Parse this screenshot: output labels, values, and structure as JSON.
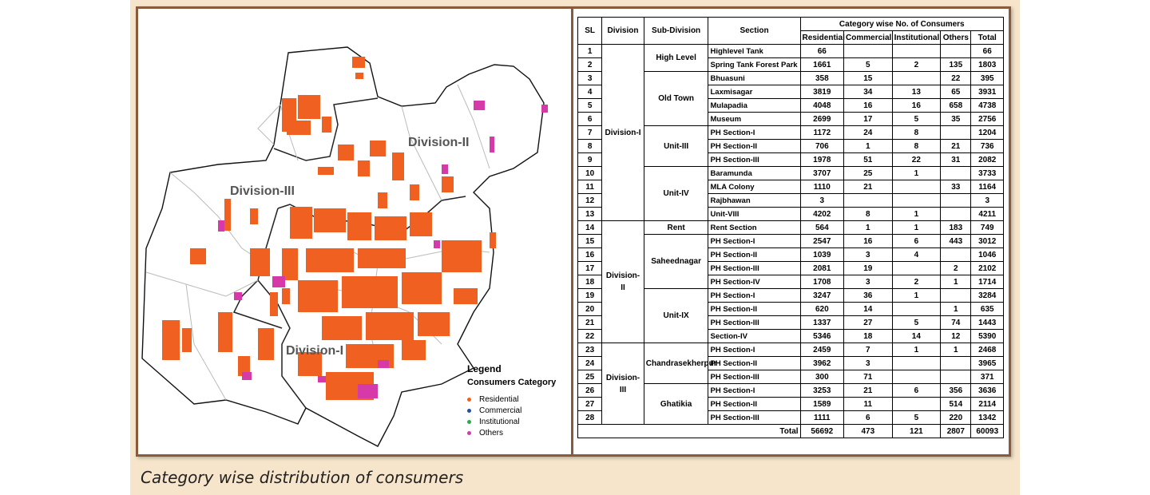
{
  "caption": "Category wise distribution of consumers",
  "map": {
    "division_labels": [
      "Division-II",
      "Division-III",
      "Division-I"
    ],
    "legend": {
      "title": "Legend",
      "subtitle": "Consumers Category",
      "items": [
        {
          "label": "Residential",
          "color": "#f06020"
        },
        {
          "label": "Commercial",
          "color": "#1f4fa8"
        },
        {
          "label": "Institutional",
          "color": "#2fa84a"
        },
        {
          "label": "Others",
          "color": "#d63aa8"
        }
      ]
    }
  },
  "table": {
    "headers": {
      "sl": "SL",
      "division": "Division",
      "sub_division": "Sub-Division",
      "section": "Section",
      "category_group": "Category wise No. of Consumers",
      "residential": "Residential",
      "commercial": "Commercial",
      "institutional": "Institutional",
      "others": "Others",
      "total": "Total"
    },
    "divisions": [
      {
        "name": "Division-I",
        "rows": 13
      },
      {
        "name": "Division-II",
        "rows": 9
      },
      {
        "name": "Division-III",
        "rows": 6
      }
    ],
    "sub_divisions": [
      {
        "name": "High Level",
        "rows": 2
      },
      {
        "name": "Old Town",
        "rows": 4
      },
      {
        "name": "Unit-III",
        "rows": 3
      },
      {
        "name": "Unit-IV",
        "rows": 4
      },
      {
        "name": "Rent",
        "rows": 1
      },
      {
        "name": "Saheednagar",
        "rows": 4
      },
      {
        "name": "Unit-IX",
        "rows": 4
      },
      {
        "name": "Chandrasekherpur",
        "rows": 3
      },
      {
        "name": "Ghatikia",
        "rows": 3
      }
    ],
    "rows": [
      {
        "sl": "1",
        "section": "Highlevel Tank",
        "res": "66",
        "com": "",
        "ins": "",
        "oth": "",
        "tot": "66"
      },
      {
        "sl": "2",
        "section": "Spring Tank Forest Park",
        "res": "1661",
        "com": "5",
        "ins": "2",
        "oth": "135",
        "tot": "1803"
      },
      {
        "sl": "3",
        "section": "Bhuasuni",
        "res": "358",
        "com": "15",
        "ins": "",
        "oth": "22",
        "tot": "395"
      },
      {
        "sl": "4",
        "section": "Laxmisagar",
        "res": "3819",
        "com": "34",
        "ins": "13",
        "oth": "65",
        "tot": "3931"
      },
      {
        "sl": "5",
        "section": "Mulapadia",
        "res": "4048",
        "com": "16",
        "ins": "16",
        "oth": "658",
        "tot": "4738"
      },
      {
        "sl": "6",
        "section": "Museum",
        "res": "2699",
        "com": "17",
        "ins": "5",
        "oth": "35",
        "tot": "2756"
      },
      {
        "sl": "7",
        "section": "PH Section-I",
        "res": "1172",
        "com": "24",
        "ins": "8",
        "oth": "",
        "tot": "1204"
      },
      {
        "sl": "8",
        "section": "PH Section-II",
        "res": "706",
        "com": "1",
        "ins": "8",
        "oth": "21",
        "tot": "736"
      },
      {
        "sl": "9",
        "section": "PH Section-III",
        "res": "1978",
        "com": "51",
        "ins": "22",
        "oth": "31",
        "tot": "2082"
      },
      {
        "sl": "10",
        "section": "Baramunda",
        "res": "3707",
        "com": "25",
        "ins": "1",
        "oth": "",
        "tot": "3733"
      },
      {
        "sl": "11",
        "section": "MLA Colony",
        "res": "1110",
        "com": "21",
        "ins": "",
        "oth": "33",
        "tot": "1164"
      },
      {
        "sl": "12",
        "section": "Rajbhawan",
        "res": "3",
        "com": "",
        "ins": "",
        "oth": "",
        "tot": "3"
      },
      {
        "sl": "13",
        "section": "Unit-VIII",
        "res": "4202",
        "com": "8",
        "ins": "1",
        "oth": "",
        "tot": "4211"
      },
      {
        "sl": "14",
        "section": "Rent Section",
        "res": "564",
        "com": "1",
        "ins": "1",
        "oth": "183",
        "tot": "749"
      },
      {
        "sl": "15",
        "section": "PH Section-I",
        "res": "2547",
        "com": "16",
        "ins": "6",
        "oth": "443",
        "tot": "3012"
      },
      {
        "sl": "16",
        "section": "PH Section-II",
        "res": "1039",
        "com": "3",
        "ins": "4",
        "oth": "",
        "tot": "1046"
      },
      {
        "sl": "17",
        "section": "PH Section-III",
        "res": "2081",
        "com": "19",
        "ins": "",
        "oth": "2",
        "tot": "2102"
      },
      {
        "sl": "18",
        "section": "PH Section-IV",
        "res": "1708",
        "com": "3",
        "ins": "2",
        "oth": "1",
        "tot": "1714"
      },
      {
        "sl": "19",
        "section": "PH Section-I",
        "res": "3247",
        "com": "36",
        "ins": "1",
        "oth": "",
        "tot": "3284"
      },
      {
        "sl": "20",
        "section": "PH Section-II",
        "res": "620",
        "com": "14",
        "ins": "",
        "oth": "1",
        "tot": "635"
      },
      {
        "sl": "21",
        "section": "PH Section-III",
        "res": "1337",
        "com": "27",
        "ins": "5",
        "oth": "74",
        "tot": "1443"
      },
      {
        "sl": "22",
        "section": "Section-IV",
        "res": "5346",
        "com": "18",
        "ins": "14",
        "oth": "12",
        "tot": "5390"
      },
      {
        "sl": "23",
        "section": "PH Section-I",
        "res": "2459",
        "com": "7",
        "ins": "1",
        "oth": "1",
        "tot": "2468"
      },
      {
        "sl": "24",
        "section": "PH Section-II",
        "res": "3962",
        "com": "3",
        "ins": "",
        "oth": "",
        "tot": "3965"
      },
      {
        "sl": "25",
        "section": "PH Section-III",
        "res": "300",
        "com": "71",
        "ins": "",
        "oth": "",
        "tot": "371"
      },
      {
        "sl": "26",
        "section": "PH Section-I",
        "res": "3253",
        "com": "21",
        "ins": "6",
        "oth": "356",
        "tot": "3636"
      },
      {
        "sl": "27",
        "section": "PH Section-II",
        "res": "1589",
        "com": "11",
        "ins": "",
        "oth": "514",
        "tot": "2114"
      },
      {
        "sl": "28",
        "section": "PH Section-III",
        "res": "1111",
        "com": "6",
        "ins": "5",
        "oth": "220",
        "tot": "1342"
      }
    ],
    "totals": {
      "label": "Total",
      "res": "56692",
      "com": "473",
      "ins": "121",
      "oth": "2807",
      "tot": "60093"
    }
  }
}
